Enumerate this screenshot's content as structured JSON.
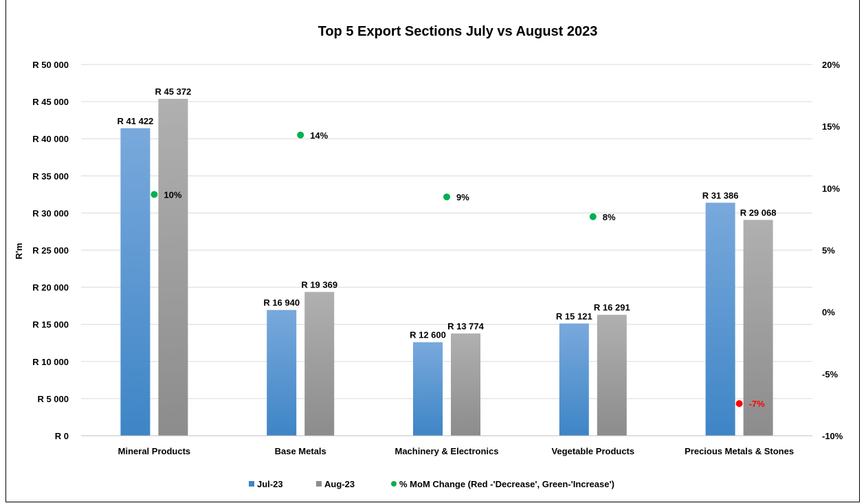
{
  "chart_data": {
    "type": "bar",
    "title": "Top 5 Export Sections  July vs August 2023",
    "ylabel": "R'm",
    "categories": [
      "Mineral Products",
      "Base Metals",
      "Machinery & Electronics",
      "Vegetable Products",
      "Precious Metals & Stones"
    ],
    "series": [
      {
        "name": "Jul-23",
        "values": [
          41422,
          16940,
          12600,
          15121,
          31386
        ],
        "labels": [
          "R 41 422",
          "R 16 940",
          "R 12 600",
          "R 15 121",
          "R 31 386"
        ],
        "color_top": "#79a9dc",
        "color_bottom": "#3e85c6"
      },
      {
        "name": "Aug-23",
        "values": [
          45372,
          19369,
          13774,
          16291,
          29068
        ],
        "labels": [
          "R 45 372",
          "R 19 369",
          "R 13 774",
          "R 16 291",
          "R 29 068"
        ],
        "color_top": "#b0b0b0",
        "color_bottom": "#8c8c8c"
      }
    ],
    "secondary_series": {
      "name": "% MoM Change (Red -'Decrease', Green-'Increase')",
      "type": "scatter",
      "values": [
        9.5,
        14.3,
        9.3,
        7.7,
        -7.4
      ],
      "labels": [
        "10%",
        "14%",
        "9%",
        "8%",
        "-7%"
      ],
      "increase_color": "#00b050",
      "decrease_color": "#ff0000"
    },
    "ylim": [
      0,
      50000
    ],
    "yticks": [
      0,
      5000,
      10000,
      15000,
      20000,
      25000,
      30000,
      35000,
      40000,
      45000,
      50000
    ],
    "ytick_labels": [
      "R 0",
      "R 5 000",
      "R 10 000",
      "R 15 000",
      "R 20 000",
      "R 25 000",
      "R 30 000",
      "R 35 000",
      "R 40 000",
      "R 45 000",
      "R 50 000"
    ],
    "y2lim": [
      -10,
      20
    ],
    "y2ticks": [
      -10,
      -5,
      0,
      5,
      10,
      15,
      20
    ],
    "y2tick_labels": [
      "-10%",
      "-5%",
      "0%",
      "5%",
      "10%",
      "15%",
      "20%"
    ],
    "grid": true,
    "legend_position": "bottom"
  }
}
